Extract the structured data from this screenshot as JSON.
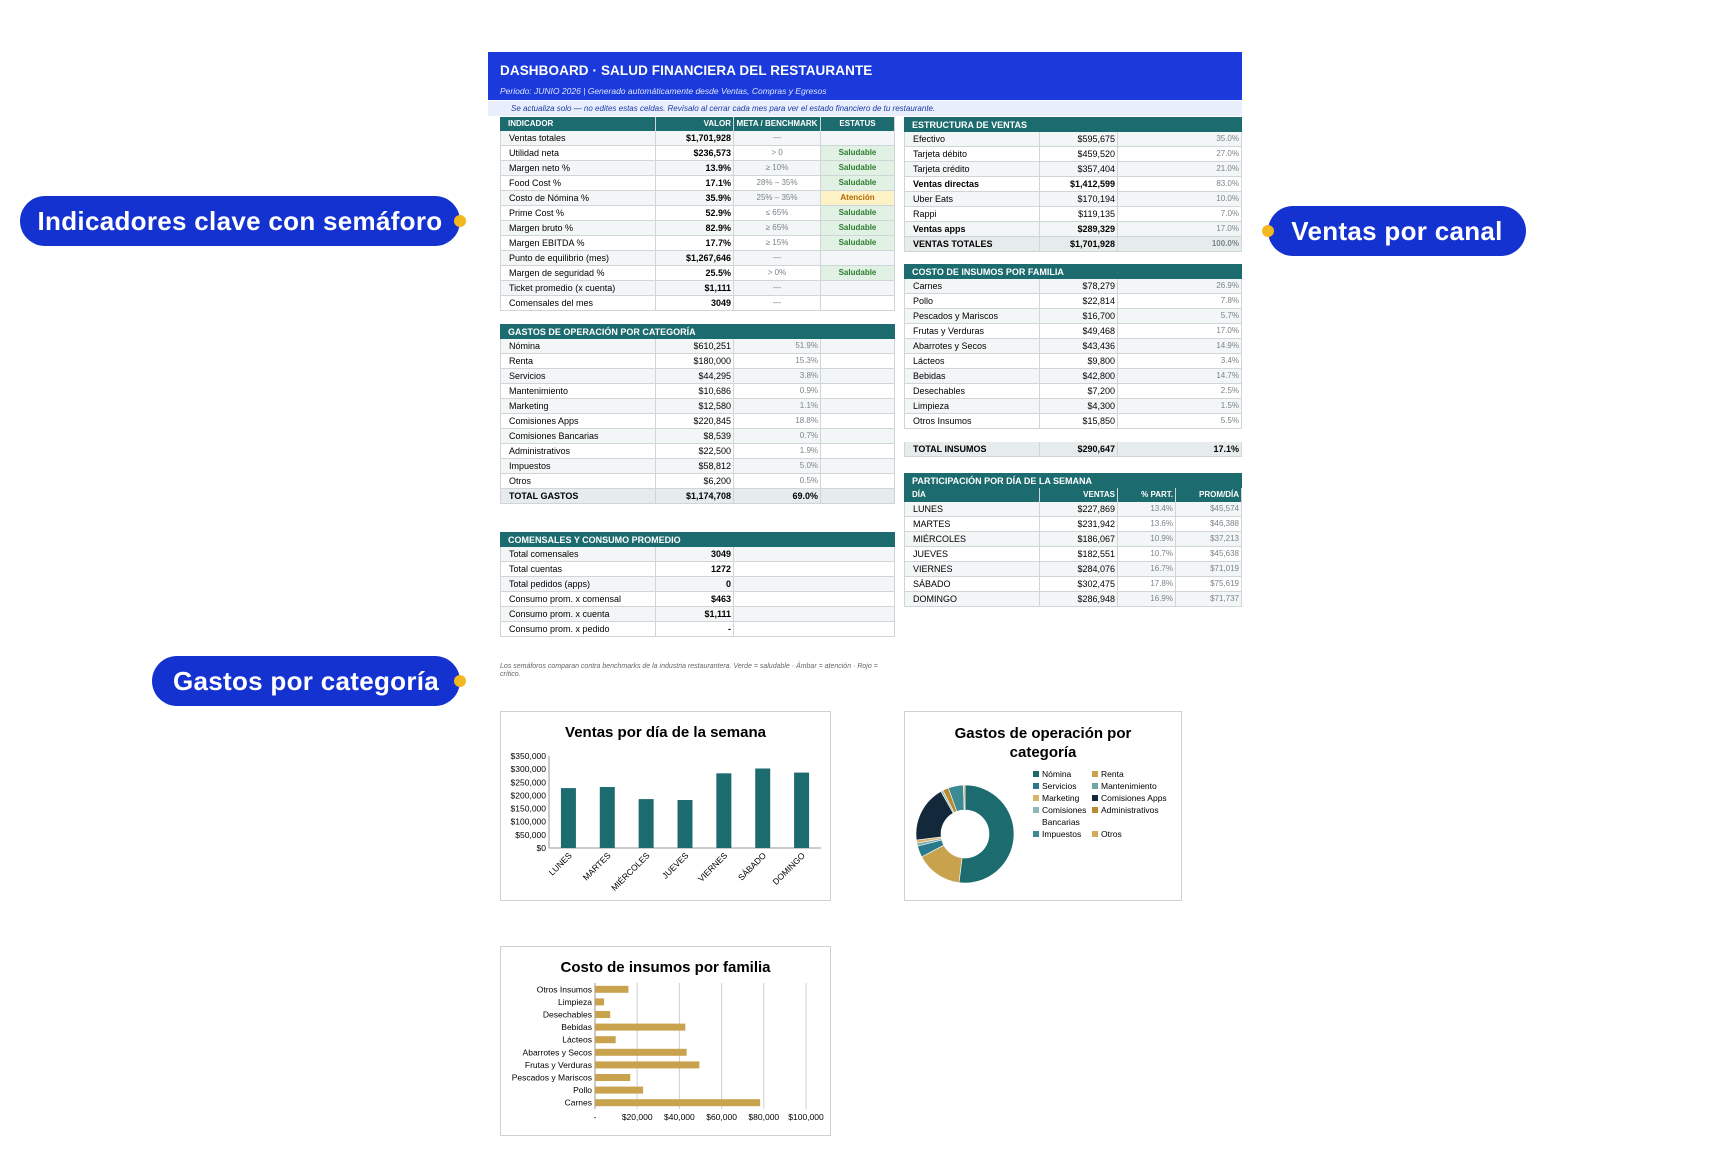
{
  "header": {
    "title": "DASHBOARD · SALUD FINANCIERA DEL RESTAURANTE",
    "period": "Periodo: JUNIO 2026   |   Generado automáticamente desde Ventas, Compras y Egresos",
    "note": "Se actualiza solo — no edites estas celdas. Revísalo al cerrar cada mes para ver el estado financiero de tu restaurante."
  },
  "kpi": {
    "headers": [
      "INDICADOR",
      "VALOR",
      "META / BENCHMARK",
      "ESTATUS"
    ],
    "rows": [
      {
        "label": "Ventas totales",
        "value": "$1,701,928",
        "meta": "—",
        "status": ""
      },
      {
        "label": "Utilidad neta",
        "value": "$236,573",
        "meta": "> 0",
        "status": "Saludable"
      },
      {
        "label": "Margen neto %",
        "value": "13.9%",
        "meta": "≥ 10%",
        "status": "Saludable"
      },
      {
        "label": "Food Cost %",
        "value": "17.1%",
        "meta": "28% – 35%",
        "status": "Saludable"
      },
      {
        "label": "Costo de Nómina %",
        "value": "35.9%",
        "meta": "25% – 35%",
        "status": "Atención"
      },
      {
        "label": "Prime Cost %",
        "value": "52.9%",
        "meta": "≤ 65%",
        "status": "Saludable"
      },
      {
        "label": "Margen bruto %",
        "value": "82.9%",
        "meta": "≥ 65%",
        "status": "Saludable"
      },
      {
        "label": "Margen EBITDA %",
        "value": "17.7%",
        "meta": "≥ 15%",
        "status": "Saludable"
      },
      {
        "label": "Punto de equilibrio (mes)",
        "value": "$1,267,646",
        "meta": "—",
        "status": ""
      },
      {
        "label": "Margen de seguridad %",
        "value": "25.5%",
        "meta": "> 0%",
        "status": "Saludable"
      },
      {
        "label": "Ticket promedio (x cuenta)",
        "value": "$1,111",
        "meta": "—",
        "status": ""
      },
      {
        "label": "Comensales del mes",
        "value": "3049",
        "meta": "—",
        "status": ""
      }
    ]
  },
  "gastos": {
    "title": "GASTOS DE OPERACIÓN POR CATEGORÍA",
    "rows": [
      {
        "label": "Nómina",
        "value": "$610,251",
        "pct": "51.9%"
      },
      {
        "label": "Renta",
        "value": "$180,000",
        "pct": "15.3%"
      },
      {
        "label": "Servicios",
        "value": "$44,295",
        "pct": "3.8%"
      },
      {
        "label": "Mantenimiento",
        "value": "$10,686",
        "pct": "0.9%"
      },
      {
        "label": "Marketing",
        "value": "$12,580",
        "pct": "1.1%"
      },
      {
        "label": "Comisiones Apps",
        "value": "$220,845",
        "pct": "18.8%"
      },
      {
        "label": "Comisiones Bancarias",
        "value": "$8,539",
        "pct": "0.7%"
      },
      {
        "label": "Administrativos",
        "value": "$22,500",
        "pct": "1.9%"
      },
      {
        "label": "Impuestos",
        "value": "$58,812",
        "pct": "5.0%"
      },
      {
        "label": "Otros",
        "value": "$6,200",
        "pct": "0.5%"
      }
    ],
    "total": {
      "label": "TOTAL GASTOS",
      "value": "$1,174,708",
      "pct": "69.0%"
    }
  },
  "comensales": {
    "title": "COMENSALES Y CONSUMO PROMEDIO",
    "rows": [
      {
        "label": "Total comensales",
        "value": "3049"
      },
      {
        "label": "Total cuentas",
        "value": "1272"
      },
      {
        "label": "Total pedidos (apps)",
        "value": "0"
      },
      {
        "label": "Consumo prom. x comensal",
        "value": "$463"
      },
      {
        "label": "Consumo prom. x cuenta",
        "value": "$1,111"
      },
      {
        "label": "Consumo prom. x pedido",
        "value": "-"
      }
    ]
  },
  "ventas": {
    "title": "ESTRUCTURA DE VENTAS",
    "rows": [
      {
        "label": "Efectivo",
        "value": "$595,675",
        "pct": "35.0%",
        "bold": false
      },
      {
        "label": "Tarjeta débito",
        "value": "$459,520",
        "pct": "27.0%",
        "bold": false
      },
      {
        "label": "Tarjeta crédito",
        "value": "$357,404",
        "pct": "21.0%",
        "bold": false
      },
      {
        "label": "Ventas directas",
        "value": "$1,412,599",
        "pct": "83.0%",
        "bold": true
      },
      {
        "label": "Uber Eats",
        "value": "$170,194",
        "pct": "10.0%",
        "bold": false
      },
      {
        "label": "Rappi",
        "value": "$119,135",
        "pct": "7.0%",
        "bold": false
      },
      {
        "label": "Ventas apps",
        "value": "$289,329",
        "pct": "17.0%",
        "bold": true
      },
      {
        "label": "VENTAS TOTALES",
        "value": "$1,701,928",
        "pct": "100.0%",
        "bold": true
      }
    ]
  },
  "insumos": {
    "title": "COSTO DE INSUMOS POR FAMILIA",
    "rows": [
      {
        "label": "Carnes",
        "value": "$78,279",
        "pct": "26.9%"
      },
      {
        "label": "Pollo",
        "value": "$22,814",
        "pct": "7.8%"
      },
      {
        "label": "Pescados y Mariscos",
        "value": "$16,700",
        "pct": "5.7%"
      },
      {
        "label": "Frutas y Verduras",
        "value": "$49,468",
        "pct": "17.0%"
      },
      {
        "label": "Abarrotes y Secos",
        "value": "$43,436",
        "pct": "14.9%"
      },
      {
        "label": "Lácteos",
        "value": "$9,800",
        "pct": "3.4%"
      },
      {
        "label": "Bebidas",
        "value": "$42,800",
        "pct": "14.7%"
      },
      {
        "label": "Desechables",
        "value": "$7,200",
        "pct": "2.5%"
      },
      {
        "label": "Limpieza",
        "value": "$4,300",
        "pct": "1.5%"
      },
      {
        "label": "Otros Insumos",
        "value": "$15,850",
        "pct": "5.5%"
      }
    ],
    "total": {
      "label": "TOTAL INSUMOS",
      "value": "$290,647",
      "pct": "17.1%"
    }
  },
  "dias": {
    "title": "PARTICIPACIÓN POR DÍA DE LA SEMANA",
    "headers": [
      "DÍA",
      "VENTAS",
      "% PART.",
      "PROM/DÍA"
    ],
    "rows": [
      {
        "day": "LUNES",
        "value": "$227,869",
        "pct": "13.4%",
        "avg": "$45,574"
      },
      {
        "day": "MARTES",
        "value": "$231,942",
        "pct": "13.6%",
        "avg": "$46,388"
      },
      {
        "day": "MIÉRCOLES",
        "value": "$186,067",
        "pct": "10.9%",
        "avg": "$37,213"
      },
      {
        "day": "JUEVES",
        "value": "$182,551",
        "pct": "10.7%",
        "avg": "$45,638"
      },
      {
        "day": "VIERNES",
        "value": "$284,076",
        "pct": "16.7%",
        "avg": "$71,019"
      },
      {
        "day": "SÁBADO",
        "value": "$302,475",
        "pct": "17.8%",
        "avg": "$75,619"
      },
      {
        "day": "DOMINGO",
        "value": "$286,948",
        "pct": "16.9%",
        "avg": "$71,737"
      }
    ]
  },
  "footnote": "Los semáforos comparan contra benchmarks de la industria restaurantera. Verde = saludable · Ámbar = atención · Rojo = crítico.",
  "callouts": {
    "kpi": "Indicadores clave con semáforo",
    "ventas": "Ventas por canal",
    "gastos": "Gastos por categoría"
  },
  "colors": {
    "header_blue": "#1a3adb",
    "teal": "#1c6b6f",
    "gold": "#c9a24e",
    "navy": "#14283b",
    "callout": "#1432d0",
    "callout_dot": "#f3b71f"
  },
  "chart_data": [
    {
      "type": "bar",
      "title": "Ventas por día de la semana",
      "categories": [
        "LUNES",
        "MARTES",
        "MIÉRCOLES",
        "JUEVES",
        "VIERNES",
        "SÁBADO",
        "DOMINGO"
      ],
      "values": [
        227869,
        231942,
        186067,
        182551,
        284076,
        302475,
        286948
      ],
      "ylim": [
        0,
        350000
      ],
      "yticks": [
        "$0",
        "$50,000",
        "$100,000",
        "$150,000",
        "$200,000",
        "$250,000",
        "$300,000",
        "$350,000"
      ],
      "color": "#1c6b6f"
    },
    {
      "type": "pie",
      "title": "Gastos de operación por categoría",
      "categories": [
        "Nómina",
        "Renta",
        "Servicios",
        "Mantenimiento",
        "Marketing",
        "Comisiones Apps",
        "Comisiones Bancarias",
        "Administrativos",
        "Impuestos",
        "Otros"
      ],
      "values": [
        610251,
        180000,
        44295,
        10686,
        12580,
        220845,
        8539,
        22500,
        58812,
        6200
      ],
      "colors": [
        "#1c6b6f",
        "#c9a24e",
        "#2a7a8c",
        "#6fa8a6",
        "#d9b36a",
        "#14283b",
        "#8fb6b8",
        "#b88a2e",
        "#3c8a93",
        "#d4aa5a"
      ],
      "donut": true
    },
    {
      "type": "bar",
      "orientation": "horizontal",
      "title": "Costo de insumos por familia",
      "categories": [
        "Carnes",
        "Pollo",
        "Pescados y Mariscos",
        "Frutas y Verduras",
        "Abarrotes y Secos",
        "Lácteos",
        "Bebidas",
        "Desechables",
        "Limpieza",
        "Otros Insumos"
      ],
      "values": [
        78279,
        22814,
        16700,
        49468,
        43436,
        9800,
        42800,
        7200,
        4300,
        15850
      ],
      "xlim": [
        0,
        100000
      ],
      "xticks": [
        "-",
        "$20,000",
        "$40,000",
        "$60,000",
        "$80,000",
        "$100,000"
      ],
      "color": "#c9a24e"
    }
  ]
}
